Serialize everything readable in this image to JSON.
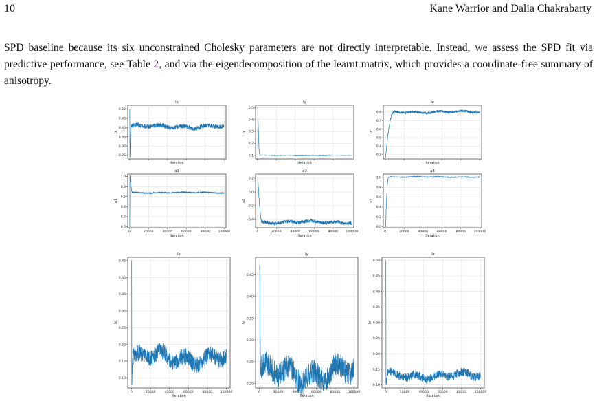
{
  "page": {
    "number": "10",
    "running_head": "Kane Warrior and Dalia Chakrabarty"
  },
  "paragraph": {
    "text_before_ref": "SPD baseline because its six unconstrained Cholesky parameters are not directly interpretable. Instead, we assess the SPD fit via predictive performance, see Table ",
    "ref": "2",
    "text_after_ref": ", and via the eigendecomposition of the learnt matrix, which provides a coordinate-free summary of anisotropy."
  },
  "colors": {
    "line": "#1f77b4",
    "grid": "#dddddd",
    "axis": "#333333"
  },
  "chart_data": [
    {
      "id": "p1",
      "type": "line",
      "title": "lx",
      "xlabel": "Iteration",
      "ylabel": "lx",
      "xlim": [
        -2000,
        102000
      ],
      "ylim": [
        0.23,
        0.52
      ],
      "grid": true,
      "yticks": [
        0.25,
        0.3,
        0.35,
        0.4,
        0.45,
        0.5
      ],
      "xticks": [
        0,
        20000,
        40000,
        60000,
        80000,
        100000
      ],
      "show_xtick_labels": false,
      "series": [
        {
          "start": 0.5,
          "spike": 0.24,
          "plateau": 0.405,
          "noise": 0.012,
          "transient": 1500
        }
      ]
    },
    {
      "id": "p2",
      "type": "line",
      "title": "ly",
      "xlabel": "Iteration",
      "ylabel": "ly",
      "xlim": [
        -2000,
        102000
      ],
      "ylim": [
        0.07,
        0.52
      ],
      "grid": true,
      "yticks": [
        0.1,
        0.2,
        0.3,
        0.4,
        0.5
      ],
      "xticks": [
        0,
        20000,
        40000,
        60000,
        80000,
        100000
      ],
      "show_xtick_labels": false,
      "series": [
        {
          "start": 0.5,
          "spike": 0.5,
          "plateau": 0.1,
          "noise": 0.002,
          "transient": 2500
        }
      ]
    },
    {
      "id": "p3",
      "type": "line",
      "title": "lz",
      "xlabel": "Iteration",
      "ylabel": "lz",
      "xlim": [
        -2000,
        102000
      ],
      "ylim": [
        0.25,
        0.88
      ],
      "grid": true,
      "yticks": [
        0.3,
        0.4,
        0.5,
        0.6,
        0.7,
        0.8
      ],
      "xticks": [
        0,
        20000,
        40000,
        60000,
        80000,
        100000
      ],
      "show_xtick_labels": false,
      "series": [
        {
          "start": 0.27,
          "spike": 0.27,
          "plateau": 0.8,
          "noise": 0.015,
          "transient": 9000
        }
      ]
    },
    {
      "id": "p4",
      "type": "line",
      "title": "a1",
      "xlabel": "Iteration",
      "ylabel": "a1",
      "xlim": [
        -2000,
        102000
      ],
      "ylim": [
        -0.02,
        1.05
      ],
      "grid": true,
      "yticks": [
        0.0,
        0.2,
        0.4,
        0.6,
        0.8,
        1.0
      ],
      "xticks": [
        0,
        20000,
        40000,
        60000,
        80000,
        100000
      ],
      "show_xtick_labels": true,
      "series": [
        {
          "start": 0.0,
          "spike": 1.02,
          "plateau": 0.68,
          "noise": 0.012,
          "transient": 3000
        }
      ]
    },
    {
      "id": "p5",
      "type": "line",
      "title": "a2",
      "xlabel": "Iteration",
      "ylabel": "a2",
      "xlim": [
        -2000,
        102000
      ],
      "ylim": [
        -0.52,
        0.26
      ],
      "grid": true,
      "yticks": [
        -0.4,
        -0.2,
        0.0,
        0.2
      ],
      "xticks": [
        0,
        20000,
        40000,
        60000,
        80000,
        100000
      ],
      "show_xtick_labels": true,
      "series": [
        {
          "start": 0.22,
          "spike": 0.22,
          "plateau": -0.44,
          "noise": 0.025,
          "transient": 5000
        }
      ]
    },
    {
      "id": "p6",
      "type": "line",
      "title": "a3",
      "xlabel": "Iteration",
      "ylabel": "a3",
      "xlim": [
        -2000,
        102000
      ],
      "ylim": [
        -0.02,
        1.07
      ],
      "grid": true,
      "yticks": [
        0.0,
        0.2,
        0.4,
        0.6,
        0.8,
        1.0
      ],
      "xticks": [
        0,
        20000,
        40000,
        60000,
        80000,
        100000
      ],
      "show_xtick_labels": true,
      "series": [
        {
          "start": 0.0,
          "spike": 0.0,
          "plateau": 1.01,
          "noise": 0.008,
          "transient": 3500
        }
      ]
    },
    {
      "id": "p7",
      "type": "line",
      "title": "lx",
      "xlabel": "Iteration",
      "ylabel": "lx",
      "xlim": [
        -4000,
        104000
      ],
      "ylim": [
        0.07,
        0.46
      ],
      "grid": true,
      "yticks": [
        0.1,
        0.15,
        0.2,
        0.25,
        0.3,
        0.35,
        0.4,
        0.45
      ],
      "xticks": [
        0,
        20000,
        40000,
        60000,
        80000,
        100000
      ],
      "show_xtick_labels": true,
      "series": [
        {
          "start": 0.45,
          "spike": 0.08,
          "plateau": 0.16,
          "noise": 0.025,
          "transient": 1500
        }
      ]
    },
    {
      "id": "p8",
      "type": "line",
      "title": "ly",
      "xlabel": "Iteration",
      "ylabel": "ly",
      "xlim": [
        -4000,
        104000
      ],
      "ylim": [
        0.19,
        0.49
      ],
      "grid": true,
      "yticks": [
        0.2,
        0.25,
        0.3,
        0.35,
        0.4,
        0.45
      ],
      "xticks": [
        0,
        20000,
        40000,
        60000,
        80000,
        100000
      ],
      "show_xtick_labels": true,
      "series": [
        {
          "start": 0.47,
          "spike": 0.47,
          "plateau": 0.225,
          "noise": 0.028,
          "transient": 1500
        }
      ]
    },
    {
      "id": "p9",
      "type": "line",
      "title": "lz",
      "xlabel": "Iteration",
      "ylabel": "lz",
      "xlim": [
        -4000,
        104000
      ],
      "ylim": [
        0.09,
        0.51
      ],
      "grid": true,
      "yticks": [
        0.1,
        0.15,
        0.2,
        0.25,
        0.3,
        0.35,
        0.4,
        0.45,
        0.5
      ],
      "xticks": [
        0,
        20000,
        40000,
        60000,
        80000,
        100000
      ],
      "show_xtick_labels": true,
      "series": [
        {
          "start": 0.5,
          "spike": 0.1,
          "plateau": 0.13,
          "noise": 0.014,
          "transient": 1500
        }
      ]
    }
  ]
}
